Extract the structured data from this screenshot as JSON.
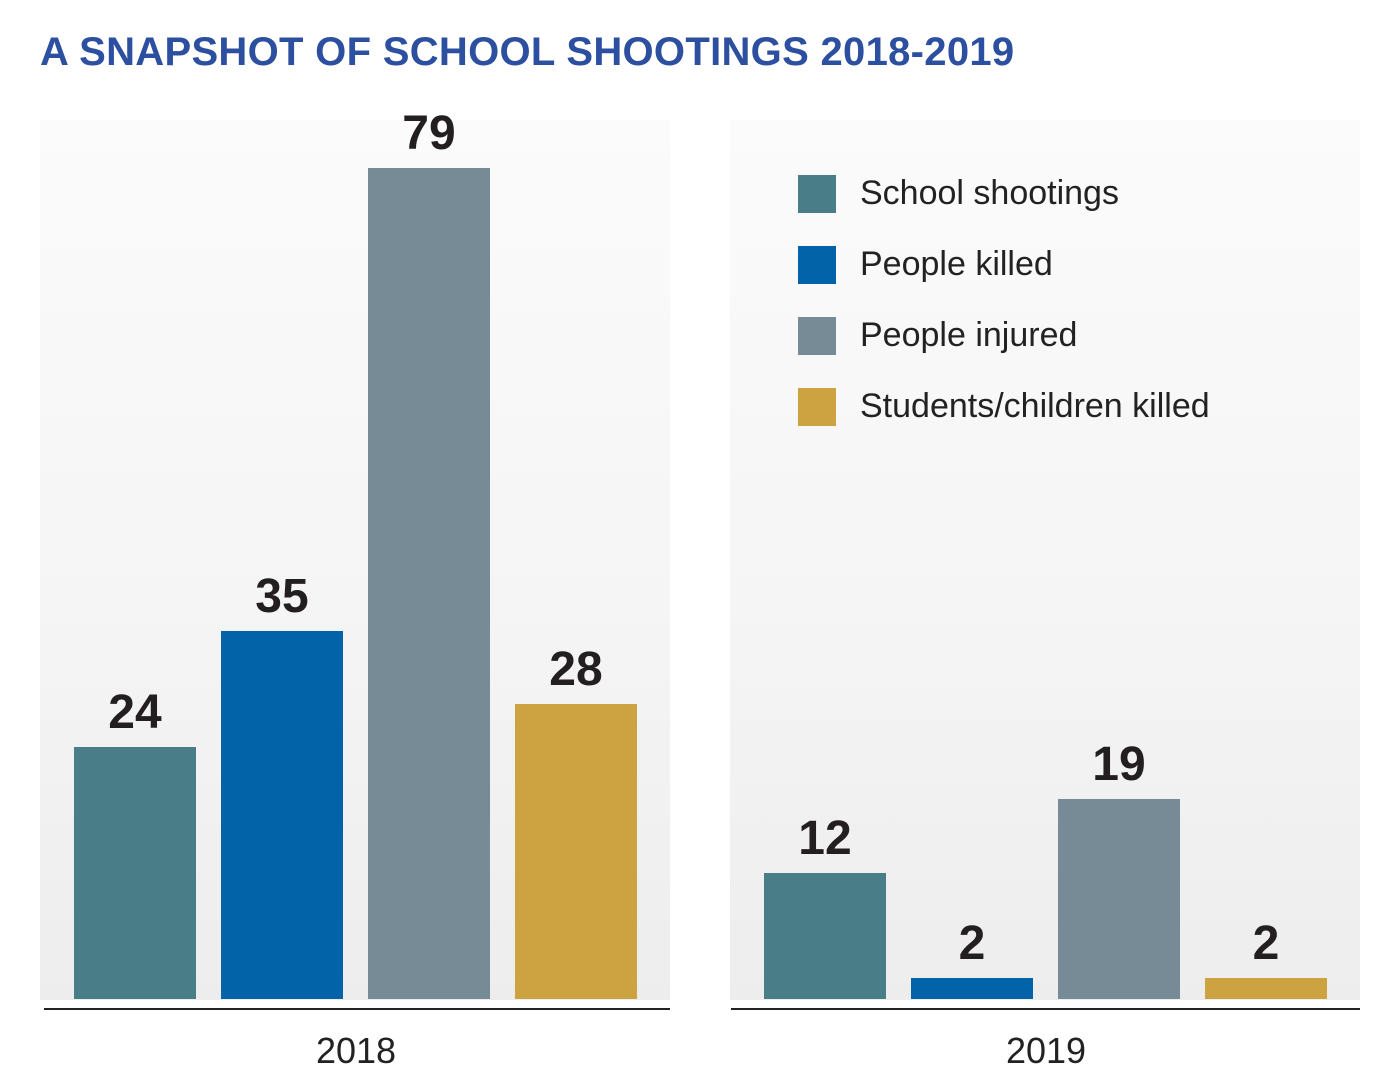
{
  "chart_data": {
    "type": "bar",
    "title": "A SNAPSHOT OF SCHOOL SHOOTINGS 2018-2019",
    "categories": [
      "2018",
      "2019"
    ],
    "series": [
      {
        "name": "School shootings",
        "color": "#497d88",
        "values": [
          24,
          12
        ]
      },
      {
        "name": "People killed",
        "color": "#0263a8",
        "values": [
          35,
          2
        ]
      },
      {
        "name": "People injured",
        "color": "#778b96",
        "values": [
          79,
          19
        ]
      },
      {
        "name": "Students/children killed",
        "color": "#cda240",
        "values": [
          28,
          2
        ]
      }
    ],
    "ylim": [
      0,
      79
    ],
    "legend": "top-right",
    "xlabel": "",
    "ylabel": ""
  }
}
